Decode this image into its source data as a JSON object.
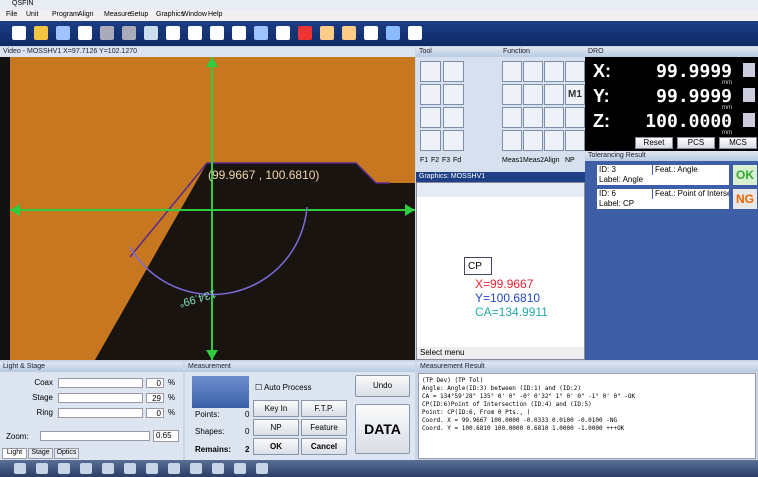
{
  "window": {
    "title": "QSFIN",
    "menu": [
      "File",
      "Unit",
      "Program",
      "Align",
      "Measure",
      "Setup",
      "Graphics",
      "Window",
      "Help"
    ]
  },
  "video": {
    "title": "Video - MOSSHV1 X=97.7126 Y=102.1270",
    "point_label": "(99.9667 , 100.6810)",
    "angle_label": "134.99°"
  },
  "tool": {
    "title": "Tool",
    "tabs": [
      "F1",
      "F2",
      "F3",
      "Fd"
    ]
  },
  "function": {
    "title": "Function",
    "button": "M1",
    "tabs": [
      "Meas1",
      "Meas2",
      "Align",
      "NP"
    ]
  },
  "dro": {
    "title": "DRO",
    "axes": [
      {
        "label": "X:",
        "value": "99.9999",
        "unit": "mm"
      },
      {
        "label": "Y:",
        "value": "99.9999",
        "unit": "mm"
      },
      {
        "label": "Z:",
        "value": "100.0000",
        "unit": "mm"
      }
    ],
    "buttons": [
      "Reset",
      "PCS",
      "MCS"
    ]
  },
  "tolerancing": {
    "title": "Tolerancing Result",
    "items": [
      {
        "id": "ID: 3",
        "feat": "Feat.: Angle",
        "label": "Label: Angle",
        "status": "OK"
      },
      {
        "id": "ID: 6",
        "feat": "Feat.: Point of Intersection",
        "label": "Label: CP",
        "status": "NG"
      }
    ]
  },
  "graphics": {
    "title": "Graphics: MOSSHV1",
    "point": "CP",
    "x": "X=99.9667",
    "y": "Y=100.6810",
    "ca": "CA=134.9911",
    "status": "Select menu"
  },
  "light": {
    "title": "Light & Stage",
    "rows": [
      {
        "label": "Coax",
        "value": "0",
        "unit": "%"
      },
      {
        "label": "Stage",
        "value": "29",
        "unit": "%"
      },
      {
        "label": "Ring",
        "value": "0",
        "unit": "%"
      }
    ],
    "zoom_label": "Zoom:",
    "zoom": "0.65",
    "tabs": [
      "Light",
      "Stage",
      "Optics"
    ]
  },
  "measurement": {
    "title": "Measurement",
    "auto": "Auto Process",
    "undo": "Undo",
    "points_label": "Points:",
    "points": "0",
    "shapes_label": "Shapes:",
    "shapes": "0",
    "remains_label": "Remains:",
    "remains": "2",
    "buttons": [
      "Key In",
      "F.T.P.",
      "NP",
      "Feature",
      "OK",
      "Cancel"
    ],
    "data": "DATA"
  },
  "result": {
    "title": "Measurement Result",
    "lines": [
      "                                               (TP Dev)   (TP Tol)",
      "Angle: Angle(ID:3) between (ID:1) and (ID:2)",
      "      CA = 134°59'28\"  135° 0' 0\"  -0° 0'32\"   1° 0' 0\"  -1° 0' 0\"    -OK",
      "CP(ID:6)Point of Intersection (ID:4) and (ID:5)",
      "Point: CP(ID:6, From 0 Pts., )",
      "   Coord. X =   99.9667  100.0000   -0.0333    0.0100   -0.0100    -NG",
      "   Coord. Y =  100.6810  100.0000    0.6810    1.0000   -1.0000  +++OK"
    ]
  }
}
